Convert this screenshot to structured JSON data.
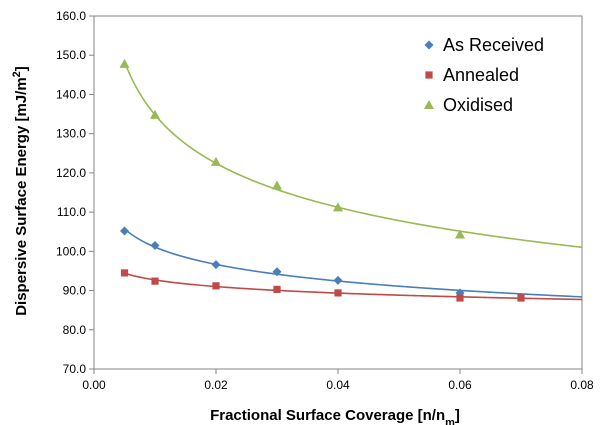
{
  "chart_data": {
    "type": "scatter",
    "title": "",
    "xlabel": "Fractional Surface Coverage [n/n",
    "xlabel_sub": "m",
    "xlabel_end": "]",
    "ylabel": "Dispersive Surface Energy [mJ/m",
    "ylabel_sup": "2",
    "ylabel_end": "]",
    "xlim": [
      0.0,
      0.08
    ],
    "ylim": [
      70.0,
      160.0
    ],
    "x_ticks": [
      "0.00",
      "0.02",
      "0.04",
      "0.06",
      "0.08"
    ],
    "y_ticks": [
      "70.0",
      "80.0",
      "90.0",
      "100.0",
      "110.0",
      "120.0",
      "130.0",
      "140.0",
      "150.0",
      "160.0"
    ],
    "legend_position": "top-right",
    "grid": false,
    "series": [
      {
        "name": "As Received",
        "color": "#4a7ebb",
        "marker": "diamond",
        "trendline": "power",
        "x": [
          0.005,
          0.01,
          0.02,
          0.03,
          0.04,
          0.06
        ],
        "y": [
          105.2,
          101.5,
          96.6,
          94.8,
          92.6,
          89.4
        ]
      },
      {
        "name": "Annealed",
        "color": "#be4b48",
        "marker": "square",
        "trendline": "power",
        "x": [
          0.005,
          0.01,
          0.02,
          0.03,
          0.04,
          0.06,
          0.07
        ],
        "y": [
          94.5,
          92.4,
          91.2,
          90.3,
          89.4,
          88.1,
          88.1
        ]
      },
      {
        "name": "Oxidised",
        "color": "#98b954",
        "marker": "triangle",
        "trendline": "power",
        "x": [
          0.005,
          0.01,
          0.02,
          0.03,
          0.04,
          0.06
        ],
        "y": [
          147.8,
          134.8,
          122.8,
          116.8,
          111.2,
          104.3
        ]
      }
    ]
  }
}
